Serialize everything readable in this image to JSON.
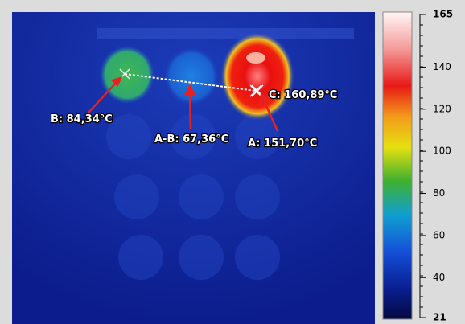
{
  "colorbar": {
    "ylim": [
      21,
      165
    ],
    "ticks": [
      165,
      140,
      120,
      100,
      80,
      60,
      40,
      21
    ]
  },
  "annotations": [
    {
      "label": "B: 84,34°C"
    },
    {
      "label": "A-B: 67,36°C"
    },
    {
      "label": "A: 151,70°C"
    },
    {
      "label": "C: 160,89°C"
    }
  ]
}
